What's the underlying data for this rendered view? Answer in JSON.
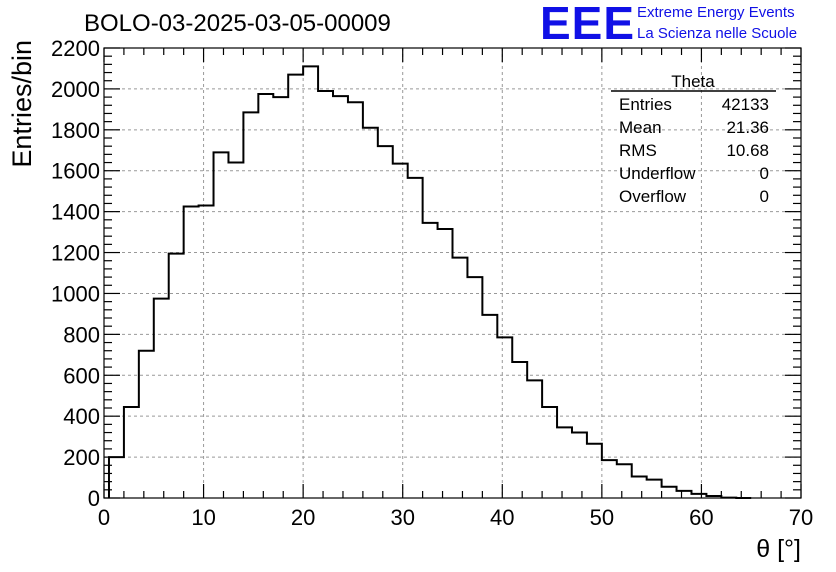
{
  "page_title": "BOLO-03-2025-03-05-00009",
  "logo": {
    "mark": "EEE",
    "line1": "Extreme Energy Events",
    "line2": "La Scienza nelle Scuole"
  },
  "colors": {
    "line": "#000000",
    "grid": "#999999",
    "logo": "#1010e6",
    "background": "#ffffff"
  },
  "chart_data": {
    "type": "histogram",
    "title": "BOLO-03-2025-03-05-00009",
    "xlabel": "θ [°]",
    "ylabel": "Entries/bin",
    "xlim": [
      0,
      70
    ],
    "ylim": [
      0,
      2200
    ],
    "grid": true,
    "x_ticks": [
      0,
      10,
      20,
      30,
      40,
      50,
      60,
      70
    ],
    "y_ticks": [
      0,
      200,
      400,
      600,
      800,
      1000,
      1200,
      1400,
      1600,
      1800,
      2000,
      2200
    ],
    "bin_width": 1.5,
    "bin_edges_start": 0.5,
    "bin_values": [
      200,
      445,
      720,
      975,
      1195,
      1425,
      1430,
      1690,
      1640,
      1885,
      1975,
      1960,
      2070,
      2110,
      1990,
      1965,
      1935,
      1810,
      1720,
      1635,
      1565,
      1345,
      1315,
      1175,
      1080,
      895,
      785,
      665,
      575,
      445,
      345,
      320,
      265,
      185,
      165,
      105,
      90,
      55,
      35,
      20,
      10,
      2,
      0
    ],
    "stats": {
      "title": "Theta",
      "rows": [
        {
          "label": "Entries",
          "value": "42133"
        },
        {
          "label": "Mean",
          "value": "21.36"
        },
        {
          "label": "RMS",
          "value": "10.68"
        },
        {
          "label": "Underflow",
          "value": "0"
        },
        {
          "label": "Overflow",
          "value": "0"
        }
      ]
    }
  }
}
